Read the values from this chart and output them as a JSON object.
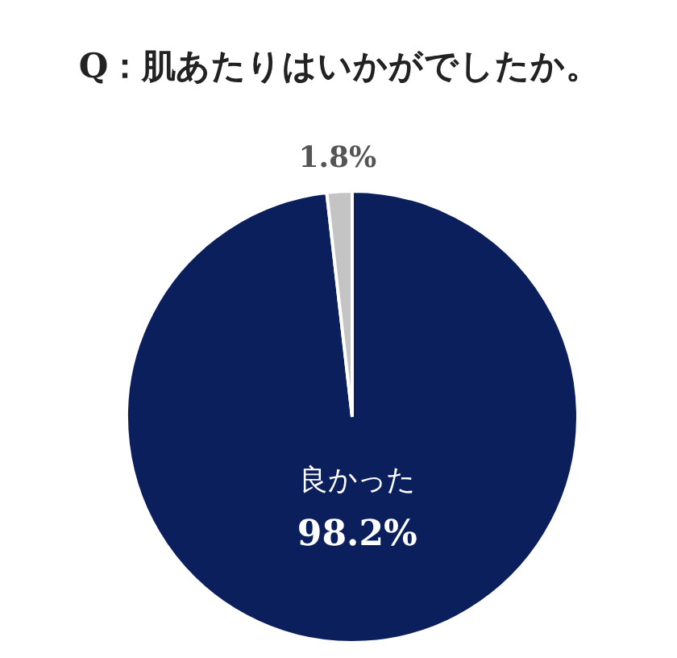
{
  "chart_data": {
    "type": "pie",
    "title": "Q：肌あたりはいかがでしたか。",
    "categories": [
      "良かった",
      null
    ],
    "values": [
      98.2,
      1.8
    ],
    "value_labels": [
      "98.2%",
      "1.8%"
    ],
    "colors": [
      "#0b1f5c",
      "#c4c4c4"
    ]
  }
}
